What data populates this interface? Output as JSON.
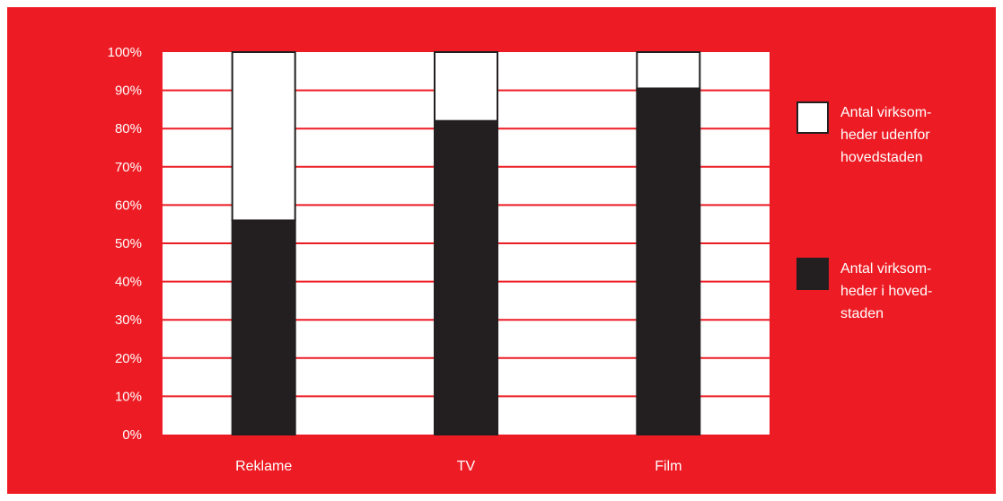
{
  "colors": {
    "background": "#ed1c24",
    "plot_area": "#ffffff",
    "gridline": "#ed1c24",
    "series_dark": "#231f20",
    "series_light": "#ffffff",
    "stroke": "#231f20"
  },
  "chart_data": {
    "type": "bar",
    "stacked": true,
    "categories": [
      "Reklame",
      "TV",
      "Film"
    ],
    "series": [
      {
        "name": "Antal virksomheder i hovedstaden",
        "values": [
          56,
          82,
          90.5
        ],
        "color": "#231f20"
      },
      {
        "name": "Antal virksomheder udenfor hovedstaden",
        "values": [
          44,
          18,
          9.5
        ],
        "color": "#ffffff"
      }
    ],
    "ylim": [
      0,
      100
    ],
    "yticks": [
      "0%",
      "10%",
      "20%",
      "30%",
      "40%",
      "50%",
      "60%",
      "70%",
      "80%",
      "90%",
      "100%"
    ],
    "grid": true,
    "legend_position": "right",
    "legend": [
      {
        "lines": [
          "Antal virksom-",
          "heder udenfor",
          "hovedstaden"
        ],
        "color": "#ffffff"
      },
      {
        "lines": [
          "Antal virksom-",
          "heder i hoved-",
          "staden"
        ],
        "color": "#231f20"
      }
    ]
  }
}
